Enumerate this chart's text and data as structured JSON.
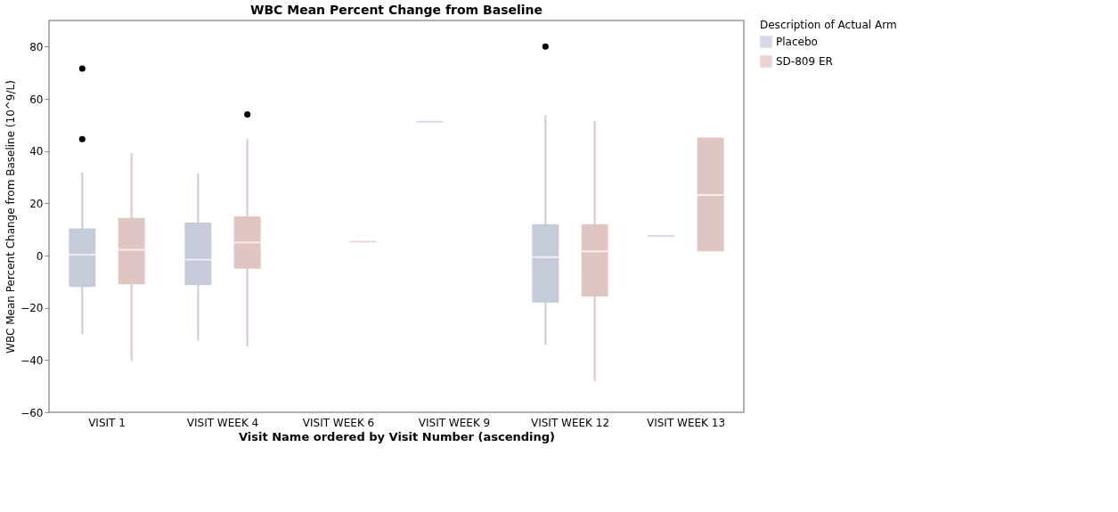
{
  "chart_data": {
    "type": "box",
    "title": "WBC Mean Percent Change from Baseline",
    "xlabel": "Visit Name ordered by Visit Number (ascending)",
    "ylabel": "WBC Mean Percent Change from Baseline (10^9/L)",
    "legend_title": "Description of Actual Arm",
    "legend": "top right",
    "categories": [
      "VISIT 1",
      "VISIT WEEK 4",
      "VISIT WEEK 6",
      "VISIT WEEK 9",
      "VISIT WEEK 12",
      "VISIT WEEK 13"
    ],
    "ylim": [
      -60,
      90
    ],
    "yticks": [
      -60,
      -40,
      -20,
      0,
      20,
      40,
      60,
      80
    ],
    "series": [
      {
        "name": "Placebo",
        "color": "#c5cbd9",
        "boxes": [
          {
            "low": -30,
            "q1": -12,
            "median": 0.3,
            "q3": 10.4,
            "high": 31.7,
            "outliers": [
              71.6,
              44.6
            ]
          },
          {
            "low": -32.6,
            "q1": -11.3,
            "median": -1.6,
            "q3": 12.6,
            "high": 31.4
          },
          null,
          {
            "low": 51.2,
            "q1": 51.2,
            "median": 51.2,
            "q3": 51.2,
            "high": 51.2
          },
          {
            "low": -34.2,
            "q1": -18,
            "median": -0.6,
            "q3": 12,
            "high": 53.7,
            "outliers": [
              80
            ]
          },
          {
            "low": 7.5,
            "q1": 7.5,
            "median": 7.5,
            "q3": 7.5,
            "high": 7.5
          }
        ]
      },
      {
        "name": "SD-809 ER",
        "color": "#e0c6c2",
        "boxes": [
          {
            "low": -40.5,
            "q1": -11,
            "median": 2.2,
            "q3": 14.4,
            "high": 39.2
          },
          {
            "low": -34.8,
            "q1": -5,
            "median": 5,
            "q3": 15,
            "high": 44.6,
            "outliers": [
              54
            ]
          },
          {
            "low": 5.3,
            "q1": 5.3,
            "median": 5.3,
            "q3": 5.3,
            "high": 5.3
          },
          null,
          {
            "low": -48,
            "q1": -15.7,
            "median": 1.6,
            "q3": 12,
            "high": 51.5
          },
          {
            "low": 1.6,
            "q1": 1.6,
            "median": 23.2,
            "q3": 45.2,
            "high": 45.2
          }
        ]
      }
    ]
  }
}
